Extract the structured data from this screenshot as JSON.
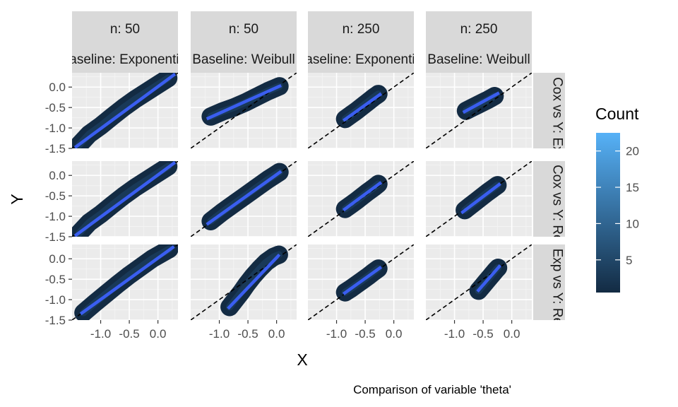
{
  "chart_data": {
    "type": "scatter",
    "subtype": "faceted density cloud with fitted line and identity reference",
    "xlabel": "X",
    "ylabel": "Y",
    "caption": "Comparison of variable 'theta'",
    "x_ticks": [
      -1.0,
      -0.5,
      0.0
    ],
    "x_tick_labels": [
      "-1.0",
      "-0.5",
      "0.0"
    ],
    "y_ticks": [
      0.0,
      -0.5,
      -1.0,
      -1.5
    ],
    "y_tick_labels": [
      "0.0",
      "-0.5",
      "-1.0",
      "-1.5"
    ],
    "xlim": [
      -1.5,
      0.35
    ],
    "ylim": [
      -1.5,
      0.35
    ],
    "facet_cols": [
      {
        "n_label": "n: 50",
        "baseline_label": "Baseline: Exponential"
      },
      {
        "n_label": "n: 50",
        "baseline_label": "Baseline: Weibull"
      },
      {
        "n_label": "n: 250",
        "baseline_label": "Baseline: Exponential"
      },
      {
        "n_label": "n: 250",
        "baseline_label": "Baseline: Weibull"
      }
    ],
    "facet_rows": [
      {
        "label": "X: Cox vs Y: Exp"
      },
      {
        "label": "X: Cox vs Y: Rep"
      },
      {
        "label": "X: Exp vs Y: Rep"
      }
    ],
    "reference_line": {
      "slope": 1,
      "intercept": 0,
      "style": "dashed",
      "color": "#000000"
    },
    "fit_color": "#3a5ef0",
    "legend": {
      "title": "Count",
      "ticks": [
        5,
        10,
        15,
        20
      ],
      "range": [
        0.5,
        22.5
      ],
      "color_low": "#132b43",
      "color_high": "#56b1f7",
      "position": "right"
    },
    "panels": [
      {
        "row": 0,
        "col": 0,
        "points": [
          [
            -1.38,
            -1.42
          ],
          [
            -1.2,
            -1.15
          ],
          [
            -1.0,
            -0.95
          ],
          [
            -0.8,
            -0.72
          ],
          [
            -0.6,
            -0.5
          ],
          [
            -0.4,
            -0.3
          ],
          [
            -0.2,
            -0.12
          ],
          [
            0.0,
            0.06
          ],
          [
            0.18,
            0.22
          ]
        ],
        "fit": [
          [
            -1.45,
            -1.48
          ],
          [
            0.3,
            0.32
          ]
        ]
      },
      {
        "row": 0,
        "col": 1,
        "points": [
          [
            -1.15,
            -0.72
          ],
          [
            -0.95,
            -0.6
          ],
          [
            -0.75,
            -0.5
          ],
          [
            -0.55,
            -0.38
          ],
          [
            -0.35,
            -0.24
          ],
          [
            -0.15,
            -0.1
          ],
          [
            0.05,
            0.02
          ]
        ],
        "fit": [
          [
            -1.22,
            -0.78
          ],
          [
            0.08,
            0.04
          ]
        ]
      },
      {
        "row": 0,
        "col": 2,
        "points": [
          [
            -0.85,
            -0.78
          ],
          [
            -0.75,
            -0.68
          ],
          [
            -0.65,
            -0.58
          ],
          [
            -0.55,
            -0.47
          ],
          [
            -0.45,
            -0.36
          ],
          [
            -0.35,
            -0.25
          ],
          [
            -0.27,
            -0.17
          ]
        ],
        "fit": [
          [
            -0.88,
            -0.82
          ],
          [
            -0.22,
            -0.16
          ]
        ]
      },
      {
        "row": 0,
        "col": 3,
        "points": [
          [
            -0.8,
            -0.58
          ],
          [
            -0.7,
            -0.51
          ],
          [
            -0.6,
            -0.44
          ],
          [
            -0.5,
            -0.37
          ],
          [
            -0.4,
            -0.3
          ],
          [
            -0.3,
            -0.22
          ]
        ],
        "fit": [
          [
            -0.85,
            -0.62
          ],
          [
            -0.22,
            -0.14
          ]
        ]
      },
      {
        "row": 1,
        "col": 0,
        "points": [
          [
            -1.38,
            -1.42
          ],
          [
            -1.2,
            -1.15
          ],
          [
            -1.0,
            -0.95
          ],
          [
            -0.8,
            -0.72
          ],
          [
            -0.6,
            -0.5
          ],
          [
            -0.4,
            -0.3
          ],
          [
            -0.2,
            -0.12
          ],
          [
            0.0,
            0.06
          ],
          [
            0.18,
            0.22
          ]
        ],
        "fit": [
          [
            -1.45,
            -1.48
          ],
          [
            0.3,
            0.32
          ]
        ]
      },
      {
        "row": 1,
        "col": 1,
        "points": [
          [
            -1.15,
            -1.12
          ],
          [
            -0.95,
            -0.9
          ],
          [
            -0.75,
            -0.7
          ],
          [
            -0.55,
            -0.5
          ],
          [
            -0.35,
            -0.3
          ],
          [
            -0.15,
            -0.1
          ],
          [
            0.05,
            0.08
          ]
        ],
        "fit": [
          [
            -1.22,
            -1.2
          ],
          [
            0.08,
            0.1
          ]
        ]
      },
      {
        "row": 1,
        "col": 2,
        "points": [
          [
            -0.85,
            -0.82
          ],
          [
            -0.75,
            -0.72
          ],
          [
            -0.65,
            -0.62
          ],
          [
            -0.55,
            -0.51
          ],
          [
            -0.45,
            -0.4
          ],
          [
            -0.35,
            -0.3
          ],
          [
            -0.27,
            -0.21
          ]
        ],
        "fit": [
          [
            -0.88,
            -0.85
          ],
          [
            -0.22,
            -0.17
          ]
        ]
      },
      {
        "row": 1,
        "col": 3,
        "points": [
          [
            -0.82,
            -0.85
          ],
          [
            -0.72,
            -0.74
          ],
          [
            -0.62,
            -0.63
          ],
          [
            -0.52,
            -0.52
          ],
          [
            -0.42,
            -0.41
          ],
          [
            -0.32,
            -0.31
          ],
          [
            -0.25,
            -0.24
          ]
        ],
        "fit": [
          [
            -0.88,
            -0.92
          ],
          [
            -0.2,
            -0.2
          ]
        ]
      },
      {
        "row": 2,
        "col": 0,
        "points": [
          [
            -1.3,
            -1.32
          ],
          [
            -1.1,
            -1.08
          ],
          [
            -0.9,
            -0.85
          ],
          [
            -0.7,
            -0.62
          ],
          [
            -0.5,
            -0.4
          ],
          [
            -0.3,
            -0.2
          ],
          [
            -0.1,
            0.0
          ],
          [
            0.1,
            0.16
          ],
          [
            0.2,
            0.24
          ]
        ],
        "fit": [
          [
            -1.35,
            -1.35
          ],
          [
            0.28,
            0.3
          ]
        ]
      },
      {
        "row": 2,
        "col": 1,
        "points": [
          [
            -0.82,
            -1.18
          ],
          [
            -0.72,
            -1.0
          ],
          [
            -0.62,
            -0.82
          ],
          [
            -0.52,
            -0.62
          ],
          [
            -0.42,
            -0.44
          ],
          [
            -0.3,
            -0.25
          ],
          [
            -0.18,
            -0.08
          ],
          [
            -0.05,
            0.05
          ],
          [
            0.04,
            0.1
          ]
        ],
        "fit": [
          [
            -0.85,
            -1.22
          ],
          [
            0.05,
            0.1
          ]
        ]
      },
      {
        "row": 2,
        "col": 2,
        "points": [
          [
            -0.85,
            -0.82
          ],
          [
            -0.75,
            -0.73
          ],
          [
            -0.65,
            -0.63
          ],
          [
            -0.55,
            -0.53
          ],
          [
            -0.45,
            -0.43
          ],
          [
            -0.35,
            -0.32
          ],
          [
            -0.27,
            -0.24
          ]
        ],
        "fit": [
          [
            -0.88,
            -0.86
          ],
          [
            -0.22,
            -0.2
          ]
        ]
      },
      {
        "row": 2,
        "col": 3,
        "points": [
          [
            -0.58,
            -0.78
          ],
          [
            -0.52,
            -0.68
          ],
          [
            -0.46,
            -0.58
          ],
          [
            -0.4,
            -0.48
          ],
          [
            -0.34,
            -0.38
          ],
          [
            -0.28,
            -0.28
          ],
          [
            -0.24,
            -0.22
          ]
        ],
        "fit": [
          [
            -0.6,
            -0.8
          ],
          [
            -0.2,
            -0.16
          ]
        ]
      }
    ]
  }
}
